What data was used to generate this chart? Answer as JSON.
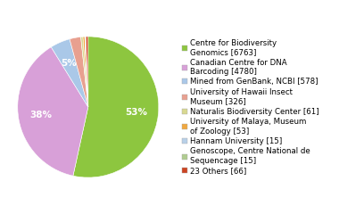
{
  "labels": [
    "Centre for Biodiversity\nGenomics [6763]",
    "Canadian Centre for DNA\nBarcoding [4780]",
    "Mined from GenBank, NCBI [578]",
    "University of Hawaii Insect\nMuseum [326]",
    "Naturalis Biodiversity Center [61]",
    "University of Malaya, Museum\nof Zoology [53]",
    "Hannam University [15]",
    "Genoscope, Centre National de\nSequencage [15]",
    "23 Others [66]"
  ],
  "values": [
    6763,
    4780,
    578,
    326,
    61,
    53,
    15,
    15,
    66
  ],
  "colors": [
    "#8dc63f",
    "#d8a0d8",
    "#aac8e8",
    "#e8a090",
    "#d8d890",
    "#f0a840",
    "#b8d0e8",
    "#b0cc90",
    "#cc4422"
  ],
  "legend_fontsize": 6.2,
  "figure_bg": "#ffffff"
}
